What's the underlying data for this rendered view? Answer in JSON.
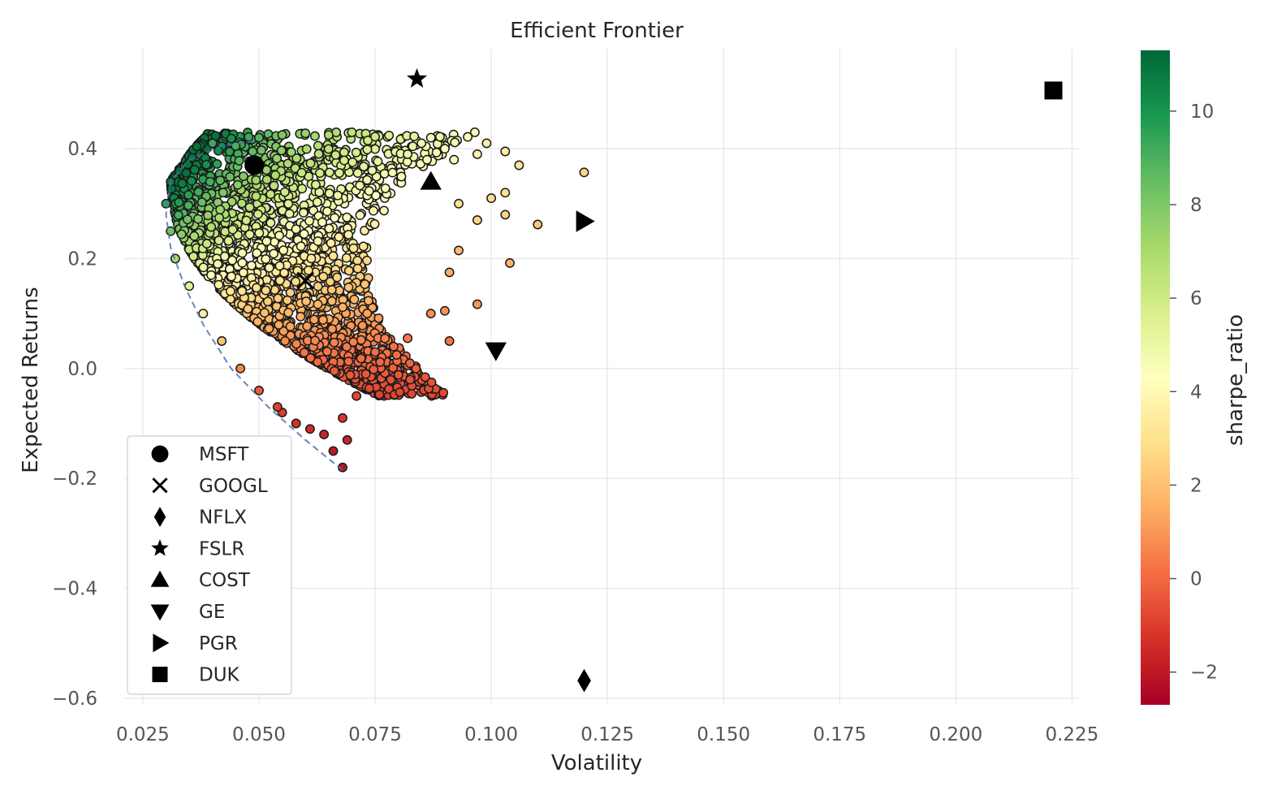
{
  "chart_data": [
    {
      "type": "scatter",
      "title": "Efficient Frontier",
      "xlabel": "Volatility",
      "ylabel": "Expected Returns",
      "xlim": [
        0.021,
        0.2265
      ],
      "ylim": [
        -0.612,
        0.582
      ],
      "xticks": [
        0.025,
        0.05,
        0.075,
        0.1,
        0.125,
        0.15,
        0.175,
        0.2,
        0.225
      ],
      "xtick_labels": [
        "0.025",
        "0.050",
        "0.075",
        "0.100",
        "0.125",
        "0.150",
        "0.175",
        "0.200",
        "0.225"
      ],
      "yticks": [
        0.4,
        0.2,
        0.0,
        -0.2,
        -0.4,
        -0.6
      ],
      "ytick_labels": [
        "0.4",
        "0.2",
        "0.0",
        "−0.2",
        "−0.4",
        "−0.6"
      ],
      "grid": true,
      "legend_position": "lower-left",
      "portfolio_cloud": {
        "description_role": "simulated portfolios colored by sharpe_ratio",
        "points": [
          [
            0.04,
            0.41,
            9.3
          ],
          [
            0.045,
            0.405,
            9.0
          ],
          [
            0.05,
            0.42,
            8.8
          ],
          [
            0.055,
            0.425,
            8.0
          ],
          [
            0.06,
            0.428,
            7.5
          ],
          [
            0.065,
            0.425,
            6.9
          ],
          [
            0.07,
            0.43,
            6.4
          ],
          [
            0.075,
            0.422,
            6.0
          ],
          [
            0.078,
            0.424,
            5.6
          ],
          [
            0.082,
            0.39,
            5.0
          ],
          [
            0.085,
            0.41,
            4.9
          ],
          [
            0.087,
            0.42,
            4.6
          ],
          [
            0.09,
            0.4,
            4.3
          ],
          [
            0.092,
            0.38,
            4.0
          ],
          [
            0.097,
            0.39,
            3.7
          ],
          [
            0.099,
            0.41,
            3.6
          ],
          [
            0.103,
            0.395,
            3.4
          ],
          [
            0.106,
            0.37,
            3.2
          ],
          [
            0.103,
            0.32,
            2.9
          ],
          [
            0.1,
            0.31,
            2.8
          ],
          [
            0.093,
            0.3,
            3.0
          ],
          [
            0.097,
            0.27,
            2.6
          ],
          [
            0.103,
            0.28,
            2.5
          ],
          [
            0.11,
            0.262,
            2.1
          ],
          [
            0.12,
            0.357,
            2.6
          ],
          [
            0.104,
            0.192,
            1.6
          ],
          [
            0.093,
            0.215,
            1.9
          ],
          [
            0.091,
            0.175,
            1.5
          ],
          [
            0.097,
            0.117,
            1.0
          ],
          [
            0.09,
            0.105,
            0.9
          ],
          [
            0.087,
            0.1,
            0.8
          ],
          [
            0.091,
            0.05,
            0.3
          ],
          [
            0.082,
            0.055,
            0.4
          ],
          [
            0.079,
            0.04,
            0.2
          ],
          [
            0.075,
            0.03,
            0.1
          ],
          [
            0.073,
            -0.01,
            -0.4
          ],
          [
            0.071,
            -0.05,
            -0.8
          ],
          [
            0.068,
            -0.09,
            -1.2
          ],
          [
            0.069,
            -0.13,
            -1.7
          ],
          [
            0.068,
            -0.18,
            -2.2
          ],
          [
            0.066,
            -0.15,
            -2.0
          ],
          [
            0.064,
            -0.12,
            -1.7
          ],
          [
            0.061,
            -0.11,
            -1.5
          ],
          [
            0.058,
            -0.1,
            -1.3
          ],
          [
            0.055,
            -0.08,
            -1.0
          ],
          [
            0.031,
            0.34,
            10.8
          ],
          [
            0.03,
            0.3,
            9.5
          ],
          [
            0.031,
            0.25,
            8.2
          ],
          [
            0.032,
            0.2,
            6.9
          ],
          [
            0.035,
            0.15,
            5.4
          ],
          [
            0.038,
            0.1,
            3.6
          ],
          [
            0.042,
            0.05,
            2.0
          ],
          [
            0.046,
            0.0,
            0.6
          ],
          [
            0.05,
            -0.04,
            -0.3
          ],
          [
            0.054,
            -0.07,
            -0.9
          ]
        ]
      },
      "frontier_curve": {
        "points": [
          [
            0.068,
            -0.185
          ],
          [
            0.06,
            -0.13
          ],
          [
            0.052,
            -0.07
          ],
          [
            0.044,
            0.0
          ],
          [
            0.038,
            0.08
          ],
          [
            0.034,
            0.15
          ],
          [
            0.031,
            0.22
          ],
          [
            0.03,
            0.28
          ],
          [
            0.031,
            0.34
          ],
          [
            0.035,
            0.38
          ],
          [
            0.042,
            0.405
          ],
          [
            0.05,
            0.415
          ]
        ]
      },
      "asset_markers": [
        {
          "name": "MSFT",
          "marker": "circle",
          "x": 0.049,
          "y": 0.37
        },
        {
          "name": "GOOGL",
          "marker": "x",
          "x": 0.06,
          "y": 0.16
        },
        {
          "name": "NFLX",
          "marker": "thin-diamond",
          "x": 0.12,
          "y": -0.568
        },
        {
          "name": "FSLR",
          "marker": "star",
          "x": 0.084,
          "y": 0.527
        },
        {
          "name": "COST",
          "marker": "triangle-up",
          "x": 0.087,
          "y": 0.34
        },
        {
          "name": "GE",
          "marker": "triangle-down",
          "x": 0.101,
          "y": 0.033
        },
        {
          "name": "PGR",
          "marker": "triangle-right",
          "x": 0.12,
          "y": 0.268
        },
        {
          "name": "DUK",
          "marker": "square",
          "x": 0.221,
          "y": 0.506
        }
      ],
      "colorbar": {
        "label": "sharpe_ratio",
        "range": [
          -2.7,
          11.3
        ],
        "ticks": [
          10,
          8,
          6,
          4,
          2,
          0,
          -2
        ],
        "tick_labels": [
          "10",
          "8",
          "6",
          "4",
          "2",
          "0",
          "−2"
        ],
        "colormap": "RdYlGn",
        "colors": [
          "#a50026",
          "#d73027",
          "#f46d43",
          "#fdae61",
          "#fee08b",
          "#ffffbf",
          "#d9ef8b",
          "#a6d96a",
          "#66bd63",
          "#1a9850",
          "#006837"
        ]
      }
    }
  ]
}
